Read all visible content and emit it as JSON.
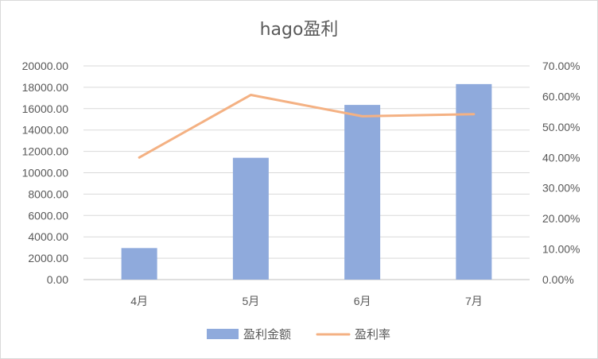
{
  "chart_data": {
    "type": "bar",
    "title": "hago盈利",
    "categories": [
      "4月",
      "5月",
      "6月",
      "7月"
    ],
    "series": [
      {
        "name": "盈利金额",
        "type": "bar",
        "axis": "left",
        "values": [
          2950,
          11400,
          16350,
          18300
        ],
        "color": "#8faadc"
      },
      {
        "name": "盈利率",
        "type": "line",
        "axis": "right",
        "values": [
          0.4,
          0.605,
          0.535,
          0.542
        ],
        "color": "#f4b183"
      }
    ],
    "left_axis": {
      "ylim": [
        0,
        20000
      ],
      "ticks": [
        "0.00",
        "2000.00",
        "4000.00",
        "6000.00",
        "8000.00",
        "10000.00",
        "12000.00",
        "14000.00",
        "16000.00",
        "18000.00",
        "20000.00"
      ]
    },
    "right_axis": {
      "ylim": [
        0,
        0.7
      ],
      "ticks": [
        "0.00%",
        "10.00%",
        "20.00%",
        "30.00%",
        "40.00%",
        "50.00%",
        "60.00%",
        "70.00%"
      ]
    },
    "grid": true,
    "legend_position": "bottom"
  }
}
